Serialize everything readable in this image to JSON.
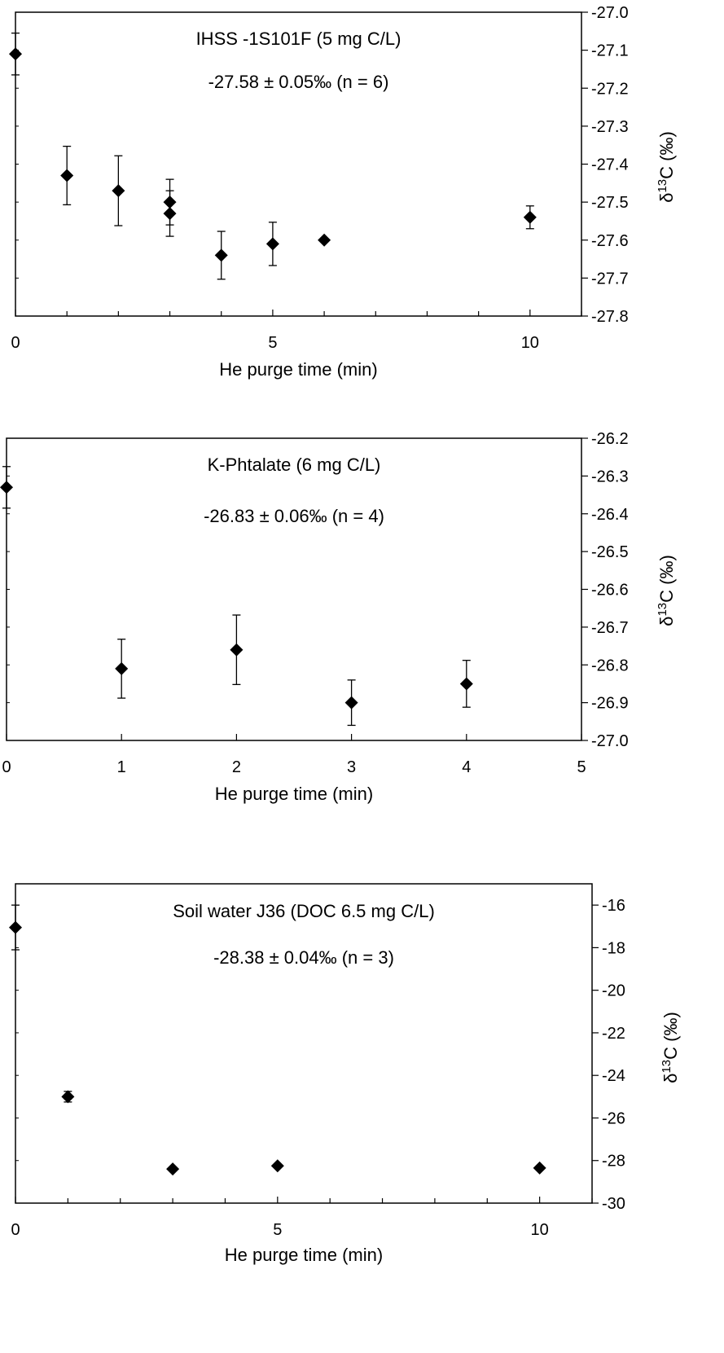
{
  "chart_data": [
    {
      "type": "scatter",
      "title": "IHSS -1S101F (5 mg C/L)",
      "annotation": "-27.58 ± 0.05‰ (n = 6)",
      "xlabel": "He purge time (min)",
      "ylabel_prefix": "δ",
      "ylabel_sup": "13",
      "ylabel_suffix": "C (‰)",
      "xlim": [
        0,
        11
      ],
      "ylim": [
        -27.8,
        -27.0
      ],
      "xticks": [
        0,
        5,
        10
      ],
      "xminor": [
        1,
        2,
        3,
        4,
        6,
        7,
        8,
        9,
        11
      ],
      "yticks": [
        "-27.0",
        "-27.1",
        "-27.2",
        "-27.3",
        "-27.4",
        "-27.5",
        "-27.6",
        "-27.7",
        "-27.8"
      ],
      "grid": false,
      "marker_color": "#000000",
      "points": [
        {
          "x": 0,
          "y": -27.11,
          "err": 0.055
        },
        {
          "x": 1,
          "y": -27.43,
          "err": 0.077
        },
        {
          "x": 2,
          "y": -27.47,
          "err": 0.092
        },
        {
          "x": 3,
          "y": -27.5,
          "err": 0.06
        },
        {
          "x": 3,
          "y": -27.53,
          "err": 0.06
        },
        {
          "x": 4,
          "y": -27.64,
          "err": 0.063
        },
        {
          "x": 5,
          "y": -27.61,
          "err": 0.057
        },
        {
          "x": 6,
          "y": -27.6,
          "err": 0
        },
        {
          "x": 10,
          "y": -27.54,
          "err": 0.03
        }
      ]
    },
    {
      "type": "scatter",
      "title": "K-Phtalate (6 mg C/L)",
      "annotation": "-26.83 ± 0.06‰ (n = 4)",
      "xlabel": "He purge time (min)",
      "ylabel_prefix": "δ",
      "ylabel_sup": "13",
      "ylabel_suffix": "C (‰)",
      "xlim": [
        0,
        5
      ],
      "ylim": [
        -27.0,
        -26.2
      ],
      "xticks": [
        0,
        1,
        2,
        3,
        4,
        5
      ],
      "xminor": [],
      "yticks": [
        "-26.2",
        "-26.3",
        "-26.4",
        "-26.5",
        "-26.6",
        "-26.7",
        "-26.8",
        "-26.9",
        "-27.0"
      ],
      "grid": false,
      "marker_color": "#000000",
      "points": [
        {
          "x": 0,
          "y": -26.33,
          "err": 0.055
        },
        {
          "x": 1,
          "y": -26.81,
          "err": 0.078
        },
        {
          "x": 2,
          "y": -26.76,
          "err": 0.092
        },
        {
          "x": 3,
          "y": -26.9,
          "err": 0.06
        },
        {
          "x": 4,
          "y": -26.85,
          "err": 0.062
        }
      ]
    },
    {
      "type": "scatter",
      "title": "Soil water J36 (DOC 6.5 mg C/L)",
      "annotation": "-28.38 ± 0.04‰ (n = 3)",
      "xlabel": "He purge time (min)",
      "ylabel_prefix": "δ",
      "ylabel_sup": "13",
      "ylabel_suffix": "C (‰)",
      "xlim": [
        0,
        11
      ],
      "ylim": [
        -30,
        -15
      ],
      "xticks": [
        0,
        5,
        10
      ],
      "xminor": [
        1,
        2,
        3,
        4,
        6,
        7,
        8,
        9,
        11
      ],
      "yticks": [
        "-16",
        "-18",
        "-20",
        "-22",
        "-24",
        "-26",
        "-28",
        "-30"
      ],
      "grid": false,
      "marker_color": "#000000",
      "points": [
        {
          "x": 0,
          "y": -17.05,
          "err": 1.05
        },
        {
          "x": 1,
          "y": -25.0,
          "err": 0.25
        },
        {
          "x": 3,
          "y": -28.4,
          "err": 0
        },
        {
          "x": 5,
          "y": -28.25,
          "err": 0
        },
        {
          "x": 10,
          "y": -28.35,
          "err": 0
        }
      ]
    }
  ]
}
